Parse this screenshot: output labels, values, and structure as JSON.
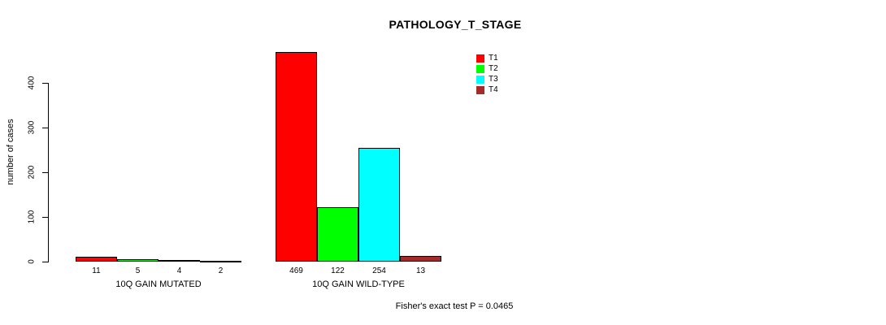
{
  "chart_data": {
    "type": "bar",
    "title": "PATHOLOGY_T_STAGE",
    "ylabel": "number of cases",
    "xlabel": "",
    "groups": [
      "10Q GAIN MUTATED",
      "10Q GAIN WILD-TYPE"
    ],
    "series": [
      {
        "name": "T1",
        "color": "#ff0000",
        "values": [
          11,
          469
        ]
      },
      {
        "name": "T2",
        "color": "#00ff00",
        "values": [
          5,
          122
        ]
      },
      {
        "name": "T3",
        "color": "#00ffff",
        "values": [
          4,
          254
        ]
      },
      {
        "name": "T4",
        "color": "#a52a2a",
        "values": [
          2,
          13
        ]
      }
    ],
    "yticks": [
      0,
      100,
      200,
      300,
      400
    ],
    "ylim": [
      0,
      470
    ],
    "grid": false,
    "legend_position": "upper-right-inside",
    "bar_border_color": "#000000",
    "footnote": "Fisher's exact test P = 0.0465"
  }
}
